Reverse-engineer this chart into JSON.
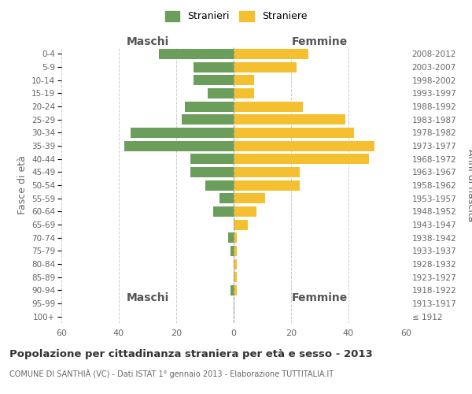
{
  "age_groups": [
    "100+",
    "95-99",
    "90-94",
    "85-89",
    "80-84",
    "75-79",
    "70-74",
    "65-69",
    "60-64",
    "55-59",
    "50-54",
    "45-49",
    "40-44",
    "35-39",
    "30-34",
    "25-29",
    "20-24",
    "15-19",
    "10-14",
    "5-9",
    "0-4"
  ],
  "birth_years": [
    "≤ 1912",
    "1913-1917",
    "1918-1922",
    "1923-1927",
    "1928-1932",
    "1933-1937",
    "1938-1942",
    "1943-1947",
    "1948-1952",
    "1953-1957",
    "1958-1962",
    "1963-1967",
    "1968-1972",
    "1973-1977",
    "1978-1982",
    "1983-1987",
    "1988-1992",
    "1993-1997",
    "1998-2002",
    "2003-2007",
    "2008-2012"
  ],
  "maschi": [
    0,
    0,
    1,
    0,
    0,
    1,
    2,
    0,
    7,
    5,
    10,
    15,
    15,
    38,
    36,
    18,
    17,
    9,
    14,
    14,
    26
  ],
  "femmine": [
    0,
    0,
    1,
    1,
    1,
    1,
    1,
    5,
    8,
    11,
    23,
    23,
    47,
    49,
    42,
    39,
    24,
    7,
    7,
    22,
    26
  ],
  "maschi_color": "#6a9e5a",
  "femmine_color": "#f5c030",
  "background_color": "#ffffff",
  "grid_color": "#cccccc",
  "axis_color": "#888888",
  "title": "Popolazione per cittadinanza straniera per età e sesso - 2013",
  "subtitle": "COMUNE DI SANTHIÀ (VC) - Dati ISTAT 1° gennaio 2013 - Elaborazione TUTTITALIA.IT",
  "xlabel_left": "Maschi",
  "xlabel_right": "Femmine",
  "ylabel_left": "Fasce di età",
  "ylabel_right": "Anni di nascita",
  "legend_stranieri": "Stranieri",
  "legend_straniere": "Straniere",
  "xlim": 60
}
